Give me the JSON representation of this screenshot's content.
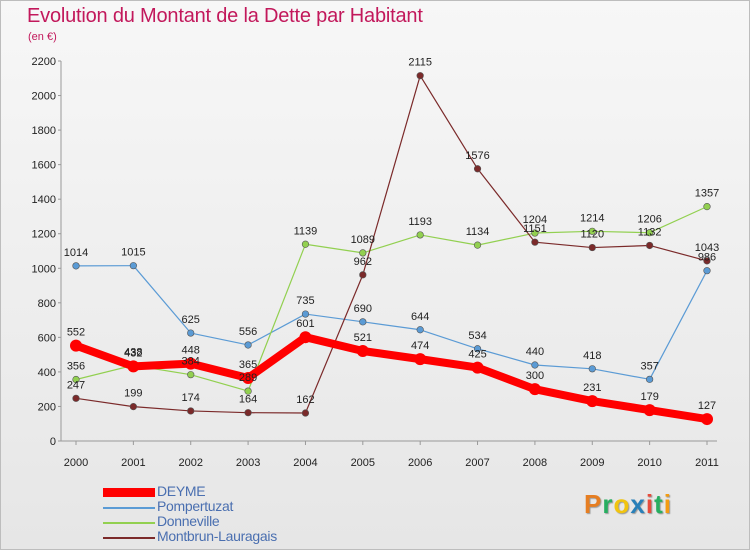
{
  "title": "Evolution du Montant de la Dette par Habitant",
  "subtitle": "(en €)",
  "logo": [
    "P",
    "r",
    "o",
    "x",
    "i",
    "t",
    "i"
  ],
  "logo_colors": [
    "#e67e22",
    "#27ae60",
    "#f1c40f",
    "#2980b9",
    "#e74c3c",
    "#27ae60",
    "#f39c12"
  ],
  "chart_data": {
    "type": "line",
    "title": "Evolution du Montant de la Dette par Habitant",
    "subtitle": "(en €)",
    "x": [
      "2000",
      "2001",
      "2002",
      "2003",
      "2004",
      "2005",
      "2006",
      "2007",
      "2008",
      "2009",
      "2010",
      "2011"
    ],
    "ylim": [
      0,
      2200
    ],
    "yticks": [
      "0",
      "200",
      "400",
      "600",
      "800",
      "1000",
      "1200",
      "1400",
      "1600",
      "1800",
      "2000",
      "2200"
    ],
    "grid": false,
    "legend_position": "bottom-left",
    "series": [
      {
        "name": "DEYME",
        "color": "#ff0000",
        "values": [
          552,
          432,
          448,
          365,
          601,
          521,
          474,
          425,
          300,
          231,
          179,
          127
        ],
        "labels": [
          "552",
          "432",
          "448",
          "365",
          "601",
          "521",
          "474",
          "425",
          "300",
          "231",
          "179",
          "127"
        ]
      },
      {
        "name": "Pompertuzat",
        "color": "#5b9bd5",
        "values": [
          1014,
          1015,
          625,
          556,
          735,
          690,
          644,
          534,
          440,
          418,
          357,
          986
        ],
        "labels": [
          "1014",
          "1015",
          "625",
          "556",
          "735",
          "690",
          "644",
          "534",
          "440",
          "418",
          "357",
          "986"
        ]
      },
      {
        "name": "Donneville",
        "color": "#92d050",
        "values": [
          356,
          438,
          384,
          289,
          1139,
          1089,
          1193,
          1134,
          1204,
          1214,
          1206,
          1357
        ],
        "labels": [
          "356",
          "438",
          "384",
          "289",
          "1139",
          "1089",
          "1193",
          "1134",
          "1204",
          "1214",
          "1206",
          "1357"
        ]
      },
      {
        "name": "Montbrun-Lauragais",
        "color": "#7b2a2a",
        "values": [
          247,
          199,
          174,
          164,
          162,
          962,
          2115,
          1576,
          1151,
          1120,
          1132,
          1043
        ],
        "labels": [
          "247",
          "199",
          "174",
          "164",
          "162",
          "962",
          "2115",
          "1576",
          "1151",
          "1120",
          "1132",
          "1043"
        ]
      }
    ]
  }
}
